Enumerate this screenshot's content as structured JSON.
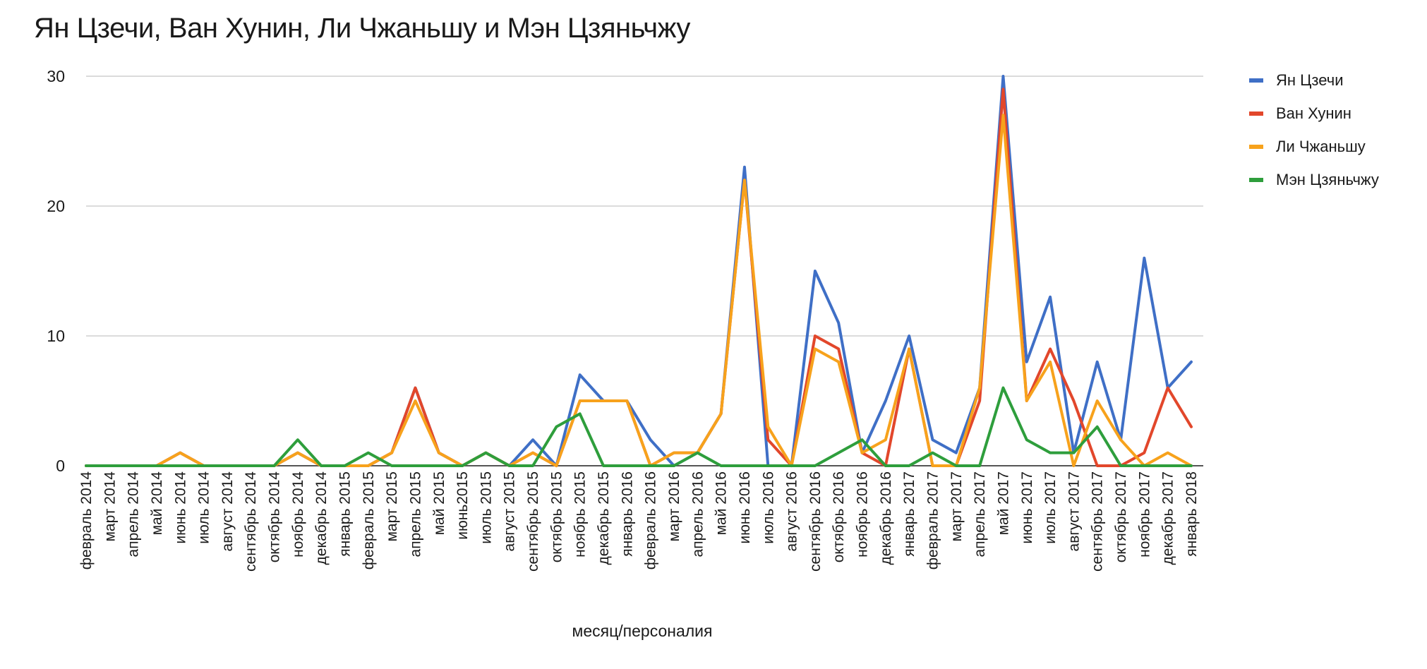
{
  "chart_data": {
    "type": "line",
    "title": "Ян Цзечи, Ван Хунин, Ли Чжаньшу и Мэн Цзяньчжу",
    "xlabel": "месяц/персоналия",
    "ylabel": "",
    "ylim": [
      0,
      30
    ],
    "yticks": [
      0,
      10,
      20,
      30
    ],
    "grid": true,
    "legend_position": "right",
    "categories": [
      "февраль 2014",
      "март 2014",
      "апрель 2014",
      "май 2014",
      "июнь 2014",
      "июль 2014",
      "август 2014",
      "сентябрь 2014",
      "октябрь 2014",
      "ноябрь 2014",
      "декабрь 2014",
      "январь 2015",
      "февраль 2015",
      "март 2015",
      "апрель 2015",
      "май 2015",
      "июнь2015",
      "июль 2015",
      "август 2015",
      "сентябрь 2015",
      "октябрь 2015",
      "ноябрь 2015",
      "декабрь 2015",
      "январь 2016",
      "февраль 2016",
      "март 2016",
      "апрель 2016",
      "май 2016",
      "июнь 2016",
      "июль 2016",
      "август 2016",
      "сентябрь 2016",
      "октябрь 2016",
      "ноябрь 2016",
      "декабрь 2016",
      "январь 2017",
      "февраль 2017",
      "март 2017",
      "апрель 2017",
      "май 2017",
      "июнь 2017",
      "июль 2017",
      "август 2017",
      "сентябрь 2017",
      "октябрь 2017",
      "ноябрь 2017",
      "декабрь 2017",
      "январь 2018"
    ],
    "series": [
      {
        "name": "Ян Цзечи",
        "color": "#3f6fc6",
        "values": [
          0,
          0,
          0,
          0,
          1,
          0,
          0,
          0,
          0,
          1,
          0,
          0,
          0,
          1,
          6,
          1,
          0,
          1,
          0,
          2,
          0,
          7,
          5,
          5,
          2,
          0,
          1,
          4,
          23,
          0,
          0,
          15,
          11,
          1,
          5,
          10,
          2,
          1,
          6,
          30,
          8,
          13,
          1,
          8,
          2,
          16,
          6,
          8
        ]
      },
      {
        "name": "Ван Хунин",
        "color": "#e2472b",
        "values": [
          0,
          0,
          0,
          0,
          1,
          0,
          0,
          0,
          0,
          1,
          0,
          0,
          0,
          1,
          6,
          1,
          0,
          1,
          0,
          1,
          0,
          5,
          5,
          5,
          0,
          1,
          1,
          4,
          22,
          2,
          0,
          10,
          9,
          1,
          0,
          9,
          0,
          0,
          5,
          29,
          5,
          9,
          5,
          0,
          0,
          1,
          6,
          3
        ]
      },
      {
        "name": "Ли Чжаньшу",
        "color": "#f7a21c",
        "values": [
          0,
          0,
          0,
          0,
          1,
          0,
          0,
          0,
          0,
          1,
          0,
          0,
          0,
          1,
          5,
          1,
          0,
          1,
          0,
          1,
          0,
          5,
          5,
          5,
          0,
          1,
          1,
          4,
          22,
          3,
          0,
          9,
          8,
          1,
          2,
          9,
          0,
          0,
          6,
          27,
          5,
          8,
          0,
          5,
          2,
          0,
          1,
          0
        ]
      },
      {
        "name": "Мэн Цзяньчжу",
        "color": "#2e9e3c",
        "values": [
          0,
          0,
          0,
          0,
          0,
          0,
          0,
          0,
          0,
          2,
          0,
          0,
          1,
          0,
          0,
          0,
          0,
          1,
          0,
          0,
          3,
          4,
          0,
          0,
          0,
          0,
          1,
          0,
          0,
          0,
          0,
          0,
          1,
          2,
          0,
          0,
          1,
          0,
          0,
          6,
          2,
          1,
          1,
          3,
          0,
          0,
          0,
          0
        ]
      }
    ]
  }
}
